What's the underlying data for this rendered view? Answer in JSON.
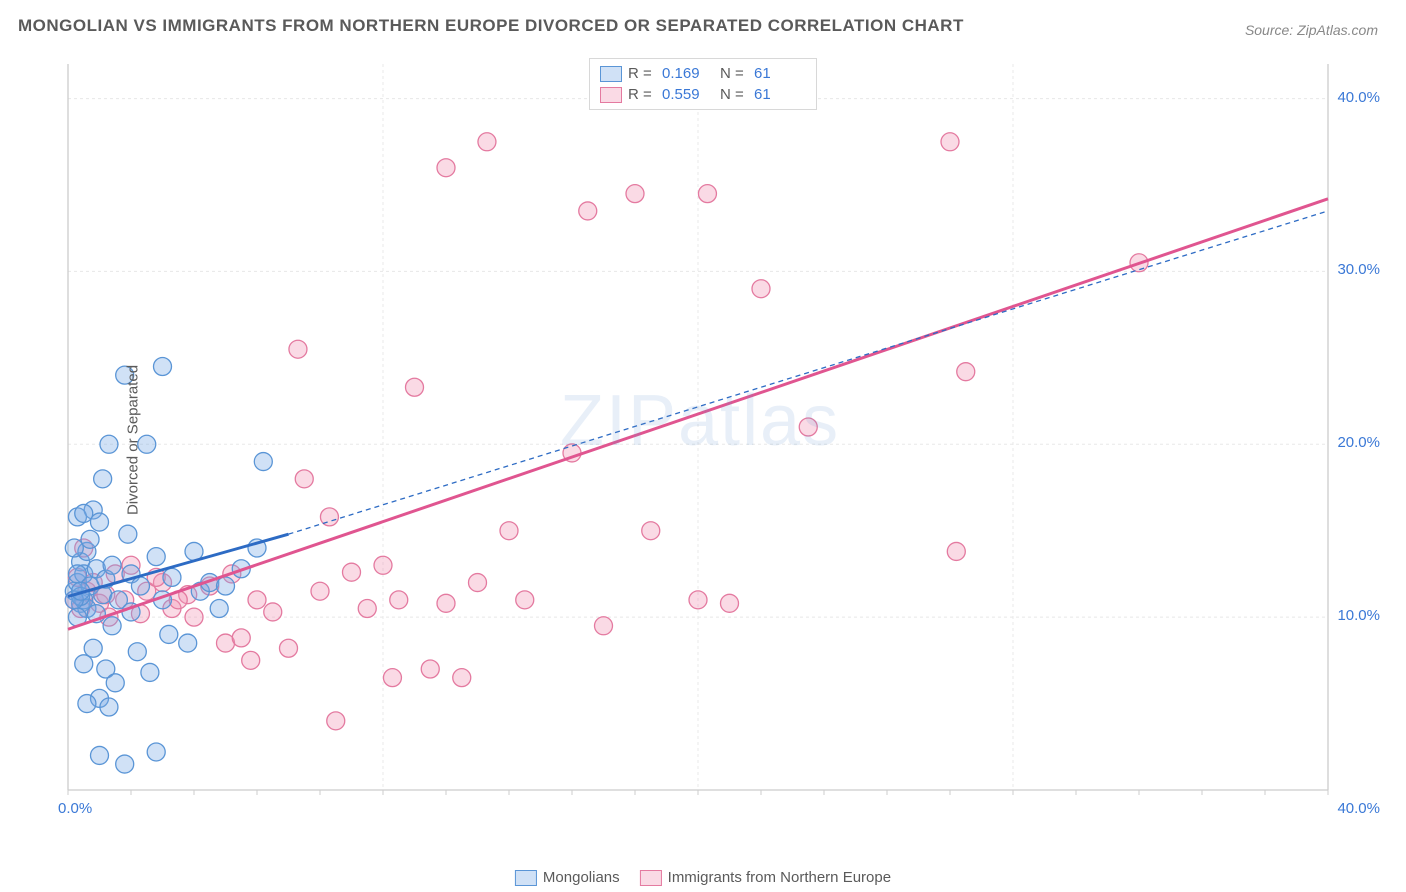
{
  "title": "MONGOLIAN VS IMMIGRANTS FROM NORTHERN EUROPE DIVORCED OR SEPARATED CORRELATION CHART",
  "source": "Source: ZipAtlas.com",
  "watermark": "ZIPatlas",
  "ylabel": "Divorced or Separated",
  "chart": {
    "type": "scatter",
    "xlim": [
      0,
      40
    ],
    "ylim": [
      0,
      42
    ],
    "x_ticks": [
      {
        "v": 0,
        "l": "0.0%"
      },
      {
        "v": 40,
        "l": "40.0%"
      }
    ],
    "y_ticks": [
      {
        "v": 10,
        "l": "10.0%"
      },
      {
        "v": 20,
        "l": "20.0%"
      },
      {
        "v": 30,
        "l": "30.0%"
      },
      {
        "v": 40,
        "l": "40.0%"
      }
    ],
    "grid_color": "#e8e8e8",
    "grid_dash": "3,3",
    "axis_color": "#cccccc",
    "background": "#ffffff",
    "marker_radius": 9,
    "marker_stroke_width": 1.3,
    "series": [
      {
        "name": "Mongolians",
        "fill": "rgba(120,170,230,0.35)",
        "stroke": "#5a95d6",
        "line_color": "#2d6bc4",
        "line_dash_ext": "5,4",
        "r": "0.169",
        "n": "61",
        "trend_solid": {
          "x1": 0,
          "y1": 11.2,
          "x2": 7,
          "y2": 14.8
        },
        "trend_dash": {
          "x1": 7,
          "y1": 14.8,
          "x2": 40,
          "y2": 33.5
        },
        "points": [
          [
            0.2,
            11.5
          ],
          [
            0.3,
            12.0
          ],
          [
            0.4,
            10.8
          ],
          [
            0.4,
            13.2
          ],
          [
            0.5,
            11.0
          ],
          [
            0.5,
            12.5
          ],
          [
            0.6,
            10.5
          ],
          [
            0.6,
            13.8
          ],
          [
            0.7,
            11.8
          ],
          [
            0.7,
            14.5
          ],
          [
            0.8,
            8.2
          ],
          [
            0.8,
            16.2
          ],
          [
            0.9,
            10.2
          ],
          [
            0.9,
            12.8
          ],
          [
            1.0,
            5.3
          ],
          [
            1.0,
            15.5
          ],
          [
            1.1,
            11.3
          ],
          [
            1.1,
            18.0
          ],
          [
            1.2,
            7.0
          ],
          [
            1.2,
            12.2
          ],
          [
            1.3,
            20.0
          ],
          [
            1.4,
            9.5
          ],
          [
            1.4,
            13.0
          ],
          [
            1.5,
            6.2
          ],
          [
            1.6,
            11.0
          ],
          [
            1.8,
            24.0
          ],
          [
            1.9,
            14.8
          ],
          [
            2.0,
            10.3
          ],
          [
            2.0,
            12.5
          ],
          [
            2.2,
            8.0
          ],
          [
            2.3,
            11.8
          ],
          [
            2.5,
            20.0
          ],
          [
            2.6,
            6.8
          ],
          [
            2.8,
            13.5
          ],
          [
            3.0,
            11.0
          ],
          [
            3.0,
            24.5
          ],
          [
            3.2,
            9.0
          ],
          [
            3.3,
            12.3
          ],
          [
            3.8,
            8.5
          ],
          [
            4.0,
            13.8
          ],
          [
            4.2,
            11.5
          ],
          [
            4.5,
            12.0
          ],
          [
            4.8,
            10.5
          ],
          [
            5.0,
            11.8
          ],
          [
            5.5,
            12.8
          ],
          [
            6.0,
            14.0
          ],
          [
            6.2,
            19.0
          ],
          [
            1.0,
            2.0
          ],
          [
            1.8,
            1.5
          ],
          [
            2.8,
            2.2
          ],
          [
            0.5,
            7.3
          ],
          [
            0.6,
            5.0
          ],
          [
            1.3,
            4.8
          ],
          [
            0.3,
            15.8
          ],
          [
            0.4,
            11.2
          ],
          [
            0.3,
            10.0
          ],
          [
            0.5,
            16.0
          ],
          [
            0.2,
            14.0
          ],
          [
            0.2,
            11.0
          ],
          [
            0.3,
            12.5
          ],
          [
            0.4,
            11.5
          ]
        ]
      },
      {
        "name": "Immigrants from Northern Europe",
        "fill": "rgba(240,150,180,0.35)",
        "stroke": "#e47aa0",
        "line_color": "#e05590",
        "r": "0.559",
        "n": "61",
        "trend_solid": {
          "x1": 0,
          "y1": 9.3,
          "x2": 40,
          "y2": 34.2
        },
        "points": [
          [
            0.2,
            11.0
          ],
          [
            0.3,
            12.3
          ],
          [
            0.4,
            10.5
          ],
          [
            0.5,
            14.0
          ],
          [
            0.6,
            11.5
          ],
          [
            0.8,
            12.0
          ],
          [
            1.0,
            10.8
          ],
          [
            1.2,
            11.3
          ],
          [
            1.5,
            12.5
          ],
          [
            1.8,
            11.0
          ],
          [
            2.0,
            13.0
          ],
          [
            2.3,
            10.2
          ],
          [
            2.5,
            11.5
          ],
          [
            3.0,
            12.0
          ],
          [
            3.3,
            10.5
          ],
          [
            3.8,
            11.3
          ],
          [
            4.0,
            10.0
          ],
          [
            4.5,
            11.8
          ],
          [
            5.0,
            8.5
          ],
          [
            5.2,
            12.5
          ],
          [
            5.8,
            7.5
          ],
          [
            6.0,
            11.0
          ],
          [
            6.5,
            10.3
          ],
          [
            7.0,
            8.2
          ],
          [
            7.3,
            25.5
          ],
          [
            7.5,
            18.0
          ],
          [
            8.0,
            11.5
          ],
          [
            8.3,
            15.8
          ],
          [
            8.5,
            4.0
          ],
          [
            9.0,
            12.6
          ],
          [
            9.5,
            10.5
          ],
          [
            10.0,
            13.0
          ],
          [
            10.3,
            6.5
          ],
          [
            10.5,
            11.0
          ],
          [
            11.0,
            23.3
          ],
          [
            11.5,
            7.0
          ],
          [
            12.0,
            10.8
          ],
          [
            12.0,
            36.0
          ],
          [
            12.5,
            6.5
          ],
          [
            13.0,
            12.0
          ],
          [
            13.3,
            37.5
          ],
          [
            14.0,
            15.0
          ],
          [
            14.5,
            11.0
          ],
          [
            16.0,
            19.5
          ],
          [
            16.5,
            33.5
          ],
          [
            17.0,
            9.5
          ],
          [
            18.0,
            34.5
          ],
          [
            18.5,
            15.0
          ],
          [
            20.0,
            11.0
          ],
          [
            20.3,
            34.5
          ],
          [
            21.0,
            10.8
          ],
          [
            22.0,
            29.0
          ],
          [
            23.5,
            21.0
          ],
          [
            28.0,
            37.5
          ],
          [
            28.2,
            13.8
          ],
          [
            28.5,
            24.2
          ],
          [
            34.0,
            30.5
          ],
          [
            5.5,
            8.8
          ],
          [
            3.5,
            11.0
          ],
          [
            2.8,
            12.3
          ],
          [
            1.3,
            10.0
          ]
        ]
      }
    ],
    "legend_top": {
      "rows": [
        {
          "swatch_fill": "rgba(120,170,230,0.35)",
          "swatch_stroke": "#5a95d6",
          "r_label": "R =",
          "r_val": "0.169",
          "n_label": "N =",
          "n_val": "61"
        },
        {
          "swatch_fill": "rgba(240,150,180,0.35)",
          "swatch_stroke": "#e47aa0",
          "r_label": "R =",
          "r_val": "0.559",
          "n_label": "N =",
          "n_val": "61"
        }
      ]
    },
    "legend_bottom": [
      {
        "swatch_fill": "rgba(120,170,230,0.35)",
        "swatch_stroke": "#5a95d6",
        "label": "Mongolians"
      },
      {
        "swatch_fill": "rgba(240,150,180,0.35)",
        "swatch_stroke": "#e47aa0",
        "label": "Immigrants from Northern Europe"
      }
    ]
  }
}
